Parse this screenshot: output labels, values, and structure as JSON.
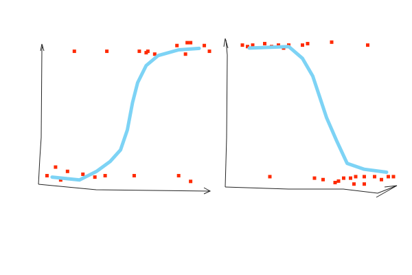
{
  "chart_data": [
    {
      "type": "scatter",
      "xlim": [
        0,
        1
      ],
      "ylim": [
        0,
        1
      ],
      "series": [
        {
          "type": "scatter",
          "color": "#ff2a00",
          "x": [
            0.21,
            0.4,
            0.59,
            0.63,
            0.64,
            0.68,
            0.81,
            0.87,
            0.89,
            0.86,
            0.97,
            1.0,
            0.1,
            0.05,
            0.17,
            0.26,
            0.33,
            0.39,
            0.56,
            0.82,
            0.89,
            0.13
          ],
          "values": [
            0.93,
            0.93,
            0.93,
            0.92,
            0.93,
            0.91,
            0.97,
            0.99,
            0.99,
            0.91,
            0.97,
            0.93,
            0.12,
            0.06,
            0.09,
            0.07,
            0.05,
            0.06,
            0.06,
            0.06,
            0.02,
            0.03
          ]
        },
        {
          "type": "line",
          "color": "#7dd3f5",
          "x": [
            0.08,
            0.24,
            0.34,
            0.42,
            0.48,
            0.52,
            0.55,
            0.58,
            0.63,
            0.7,
            0.82,
            0.94
          ],
          "values": [
            0.05,
            0.03,
            0.09,
            0.16,
            0.24,
            0.38,
            0.57,
            0.71,
            0.83,
            0.9,
            0.94,
            0.95
          ]
        }
      ]
    },
    {
      "type": "scatter",
      "xlim": [
        0,
        1
      ],
      "ylim": [
        0,
        1
      ],
      "series": [
        {
          "type": "scatter",
          "color": "#ff2a00",
          "x": [
            0.1,
            0.13,
            0.16,
            0.23,
            0.27,
            0.31,
            0.34,
            0.37,
            0.45,
            0.48,
            0.62,
            0.83,
            0.26,
            0.52,
            0.57,
            0.64,
            0.66,
            0.69,
            0.73,
            0.76,
            0.81,
            0.87,
            0.91,
            0.95,
            0.98,
            0.75,
            0.81
          ],
          "values": [
            0.96,
            0.95,
            0.96,
            0.97,
            0.95,
            0.96,
            0.94,
            0.96,
            0.96,
            0.97,
            0.98,
            0.96,
            0.07,
            0.06,
            0.05,
            0.03,
            0.04,
            0.06,
            0.06,
            0.07,
            0.07,
            0.07,
            0.05,
            0.07,
            0.07,
            0.02,
            0.02
          ]
        },
        {
          "type": "line",
          "color": "#7dd3f5",
          "x": [
            0.14,
            0.37,
            0.45,
            0.51,
            0.55,
            0.59,
            0.65,
            0.71,
            0.81,
            0.94
          ],
          "values": [
            0.94,
            0.95,
            0.87,
            0.75,
            0.61,
            0.47,
            0.31,
            0.16,
            0.12,
            0.1
          ]
        }
      ]
    }
  ]
}
